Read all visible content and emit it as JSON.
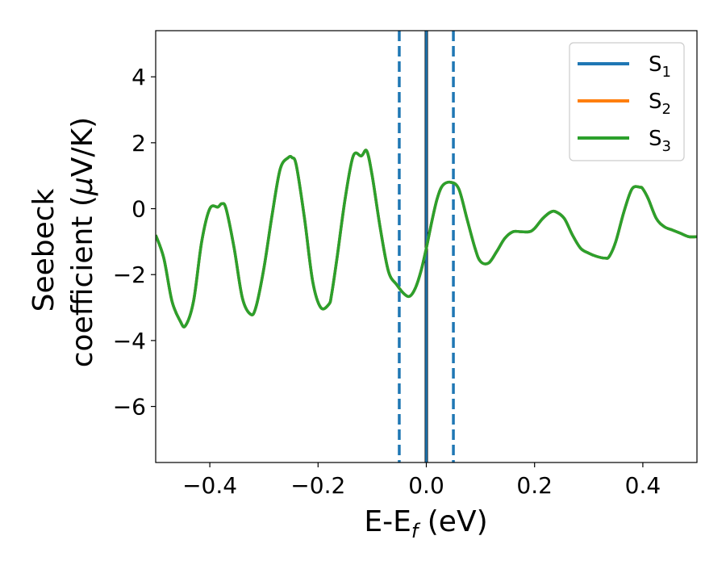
{
  "chart_data": {
    "type": "line",
    "title": "",
    "xlabel": {
      "main": "E-E",
      "sub": "f",
      "unit": " (eV)"
    },
    "ylabel": {
      "line1": "Seebeck",
      "line2_prefix": "coefficient  (",
      "mu": "μ",
      "line2_suffix": "V/K)"
    },
    "xlim": [
      -0.5,
      0.5
    ],
    "ylim": [
      -7.7,
      5.4
    ],
    "xticks": [
      -0.4,
      -0.2,
      0.0,
      0.2,
      0.4
    ],
    "xtick_labels": [
      "−0.4",
      "−0.2",
      "0.0",
      "0.2",
      "0.4"
    ],
    "yticks": [
      4,
      2,
      0,
      -2,
      -4,
      -6
    ],
    "ytick_labels": [
      "4",
      "2",
      "0",
      "−2",
      "−4",
      "−6"
    ],
    "legend": {
      "placement": "top-right",
      "entries": [
        {
          "base": "S",
          "sub": "1",
          "color": "#1f77b4"
        },
        {
          "base": "S",
          "sub": "2",
          "color": "#ff7f0e"
        },
        {
          "base": "S",
          "sub": "3",
          "color": "#2ca02c"
        }
      ]
    },
    "series": [
      {
        "name": "S1",
        "color": "#1f77b4",
        "x": [
          -0.5,
          -0.485,
          -0.47,
          -0.455,
          -0.445,
          -0.43,
          -0.415,
          -0.4,
          -0.385,
          -0.378,
          -0.37,
          -0.355,
          -0.34,
          -0.325,
          -0.315,
          -0.3,
          -0.285,
          -0.27,
          -0.255,
          -0.248,
          -0.24,
          -0.225,
          -0.21,
          -0.195,
          -0.18,
          -0.175,
          -0.165,
          -0.15,
          -0.135,
          -0.12,
          -0.11,
          -0.1,
          -0.085,
          -0.07,
          -0.055,
          -0.04,
          -0.03,
          -0.02,
          -0.01,
          0.0,
          0.01,
          0.02,
          0.03,
          0.045,
          0.06,
          0.075,
          0.09,
          0.1,
          0.115,
          0.13,
          0.145,
          0.16,
          0.175,
          0.19,
          0.2,
          0.215,
          0.23,
          0.24,
          0.255,
          0.27,
          0.285,
          0.3,
          0.315,
          0.33,
          0.338,
          0.35,
          0.365,
          0.38,
          0.395,
          0.4,
          0.41,
          0.425,
          0.44,
          0.455,
          0.47,
          0.485,
          0.5
        ],
        "y": [
          -0.8,
          -1.5,
          -2.8,
          -3.4,
          -3.55,
          -2.8,
          -1.0,
          0.0,
          0.05,
          0.15,
          0.0,
          -1.2,
          -2.7,
          -3.2,
          -3.0,
          -1.8,
          -0.2,
          1.2,
          1.55,
          1.55,
          1.3,
          -0.3,
          -2.2,
          -3.0,
          -2.9,
          -2.6,
          -1.5,
          0.3,
          1.6,
          1.6,
          1.75,
          1.0,
          -0.6,
          -1.9,
          -2.3,
          -2.6,
          -2.65,
          -2.4,
          -1.9,
          -1.2,
          -0.4,
          0.3,
          0.7,
          0.8,
          0.6,
          -0.3,
          -1.2,
          -1.6,
          -1.65,
          -1.3,
          -0.9,
          -0.7,
          -0.7,
          -0.7,
          -0.6,
          -0.3,
          -0.1,
          -0.1,
          -0.3,
          -0.8,
          -1.2,
          -1.35,
          -1.45,
          -1.5,
          -1.45,
          -1.0,
          -0.1,
          0.6,
          0.65,
          0.6,
          0.3,
          -0.3,
          -0.55,
          -0.65,
          -0.75,
          -0.85,
          -0.85
        ]
      },
      {
        "name": "S2",
        "color": "#ff7f0e",
        "x": [
          -0.5,
          -0.485,
          -0.47,
          -0.455,
          -0.445,
          -0.43,
          -0.415,
          -0.4,
          -0.385,
          -0.378,
          -0.37,
          -0.355,
          -0.34,
          -0.325,
          -0.315,
          -0.3,
          -0.285,
          -0.27,
          -0.255,
          -0.248,
          -0.24,
          -0.225,
          -0.21,
          -0.195,
          -0.18,
          -0.175,
          -0.165,
          -0.15,
          -0.135,
          -0.12,
          -0.11,
          -0.1,
          -0.085,
          -0.07,
          -0.055,
          -0.04,
          -0.03,
          -0.02,
          -0.01,
          0.0,
          0.01,
          0.02,
          0.03,
          0.045,
          0.06,
          0.075,
          0.09,
          0.1,
          0.115,
          0.13,
          0.145,
          0.16,
          0.175,
          0.19,
          0.2,
          0.215,
          0.23,
          0.24,
          0.255,
          0.27,
          0.285,
          0.3,
          0.315,
          0.33,
          0.338,
          0.35,
          0.365,
          0.38,
          0.395,
          0.4,
          0.41,
          0.425,
          0.44,
          0.455,
          0.47,
          0.485,
          0.5
        ],
        "y": [
          -0.8,
          -1.5,
          -2.8,
          -3.4,
          -3.55,
          -2.8,
          -1.0,
          0.0,
          0.05,
          0.15,
          0.0,
          -1.2,
          -2.7,
          -3.2,
          -3.0,
          -1.8,
          -0.2,
          1.2,
          1.55,
          1.55,
          1.3,
          -0.3,
          -2.2,
          -3.0,
          -2.9,
          -2.6,
          -1.5,
          0.3,
          1.6,
          1.6,
          1.75,
          1.0,
          -0.6,
          -1.9,
          -2.3,
          -2.6,
          -2.65,
          -2.4,
          -1.9,
          -1.2,
          -0.4,
          0.3,
          0.7,
          0.8,
          0.6,
          -0.3,
          -1.2,
          -1.6,
          -1.65,
          -1.3,
          -0.9,
          -0.7,
          -0.7,
          -0.7,
          -0.6,
          -0.3,
          -0.1,
          -0.1,
          -0.3,
          -0.8,
          -1.2,
          -1.35,
          -1.45,
          -1.5,
          -1.45,
          -1.0,
          -0.1,
          0.6,
          0.65,
          0.6,
          0.3,
          -0.3,
          -0.55,
          -0.65,
          -0.75,
          -0.85,
          -0.85
        ]
      },
      {
        "name": "S3",
        "color": "#2ca02c",
        "x": [
          -0.5,
          -0.485,
          -0.47,
          -0.455,
          -0.445,
          -0.43,
          -0.415,
          -0.4,
          -0.385,
          -0.378,
          -0.37,
          -0.355,
          -0.34,
          -0.325,
          -0.315,
          -0.3,
          -0.285,
          -0.27,
          -0.255,
          -0.248,
          -0.24,
          -0.225,
          -0.21,
          -0.195,
          -0.18,
          -0.175,
          -0.165,
          -0.15,
          -0.135,
          -0.12,
          -0.11,
          -0.1,
          -0.085,
          -0.07,
          -0.055,
          -0.04,
          -0.03,
          -0.02,
          -0.01,
          0.0,
          0.01,
          0.02,
          0.03,
          0.045,
          0.06,
          0.075,
          0.09,
          0.1,
          0.115,
          0.13,
          0.145,
          0.16,
          0.175,
          0.19,
          0.2,
          0.215,
          0.23,
          0.24,
          0.255,
          0.27,
          0.285,
          0.3,
          0.315,
          0.33,
          0.338,
          0.35,
          0.365,
          0.38,
          0.395,
          0.4,
          0.41,
          0.425,
          0.44,
          0.455,
          0.47,
          0.485,
          0.5
        ],
        "y": [
          -0.8,
          -1.5,
          -2.8,
          -3.4,
          -3.55,
          -2.8,
          -1.0,
          0.0,
          0.05,
          0.15,
          0.0,
          -1.2,
          -2.7,
          -3.2,
          -3.0,
          -1.8,
          -0.2,
          1.2,
          1.55,
          1.55,
          1.3,
          -0.3,
          -2.2,
          -3.0,
          -2.9,
          -2.6,
          -1.5,
          0.3,
          1.6,
          1.6,
          1.75,
          1.0,
          -0.6,
          -1.9,
          -2.3,
          -2.6,
          -2.65,
          -2.4,
          -1.9,
          -1.2,
          -0.4,
          0.3,
          0.7,
          0.8,
          0.6,
          -0.3,
          -1.2,
          -1.6,
          -1.65,
          -1.3,
          -0.9,
          -0.7,
          -0.7,
          -0.7,
          -0.6,
          -0.3,
          -0.1,
          -0.1,
          -0.3,
          -0.8,
          -1.2,
          -1.35,
          -1.45,
          -1.5,
          -1.45,
          -1.0,
          -0.1,
          0.6,
          0.65,
          0.6,
          0.3,
          -0.3,
          -0.55,
          -0.65,
          -0.75,
          -0.85,
          -0.85
        ]
      }
    ],
    "vlines": [
      {
        "x": -0.05,
        "style": "dashed",
        "color": "#1f77b4"
      },
      {
        "x": 0.05,
        "style": "dashed",
        "color": "#1f77b4"
      },
      {
        "x": 0.0,
        "style": "solid",
        "color": "#000000"
      },
      {
        "x": 0.0,
        "style": "solid",
        "color": "#1f77b4"
      }
    ],
    "grid": false
  }
}
